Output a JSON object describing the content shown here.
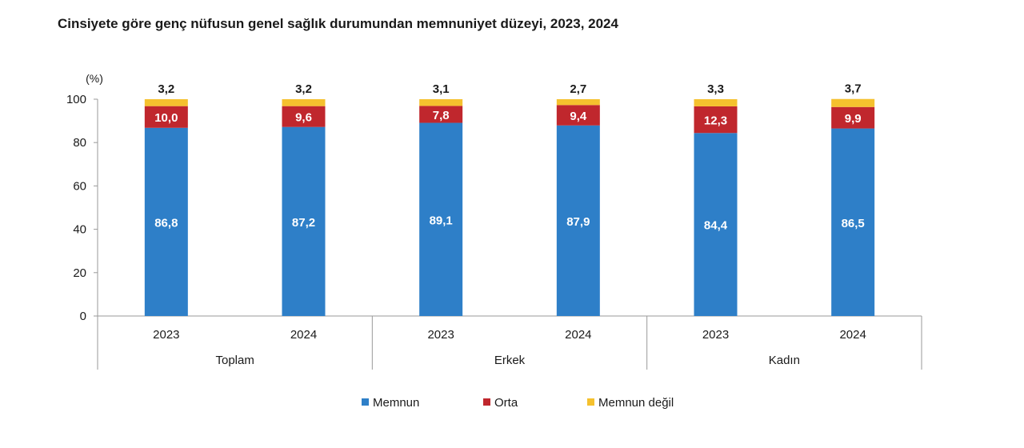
{
  "chart_data": {
    "type": "bar",
    "stacked": true,
    "title": "Cinsiyete göre genç nüfusun genel sağlık durumundan memnuniyet düzeyi, 2023, 2024",
    "ylabel": "(%)",
    "ylim": [
      0,
      100
    ],
    "yticks": [
      0,
      20,
      40,
      60,
      80,
      100
    ],
    "grid": false,
    "legend_position": "bottom",
    "categories": [
      "2023",
      "2024",
      "2023",
      "2024",
      "2023",
      "2024"
    ],
    "groups": [
      {
        "label": "Toplam",
        "span": [
          0,
          1
        ]
      },
      {
        "label": "Erkek",
        "span": [
          2,
          3
        ]
      },
      {
        "label": "Kadın",
        "span": [
          4,
          5
        ]
      }
    ],
    "series": [
      {
        "name": "Memnun",
        "color": "#2E7FC8",
        "label_color": "#ffffff",
        "values": [
          86.8,
          87.2,
          89.1,
          87.9,
          84.4,
          86.5
        ],
        "labels": [
          "86,8",
          "87,2",
          "89,1",
          "87,9",
          "84,4",
          "86,5"
        ]
      },
      {
        "name": "Orta",
        "color": "#C0272D",
        "label_color": "#ffffff",
        "values": [
          10.0,
          9.6,
          7.8,
          9.4,
          12.3,
          9.9
        ],
        "labels": [
          "10,0",
          "9,6",
          "7,8",
          "9,4",
          "12,3",
          "9,9"
        ]
      },
      {
        "name": "Memnun değil",
        "color": "#F5C12E",
        "label_color": "#1a1a1a",
        "values": [
          3.2,
          3.2,
          3.1,
          2.7,
          3.3,
          3.7
        ],
        "labels": [
          "3,2",
          "3,2",
          "3,1",
          "2,7",
          "3,3",
          "3,7"
        ]
      }
    ]
  }
}
